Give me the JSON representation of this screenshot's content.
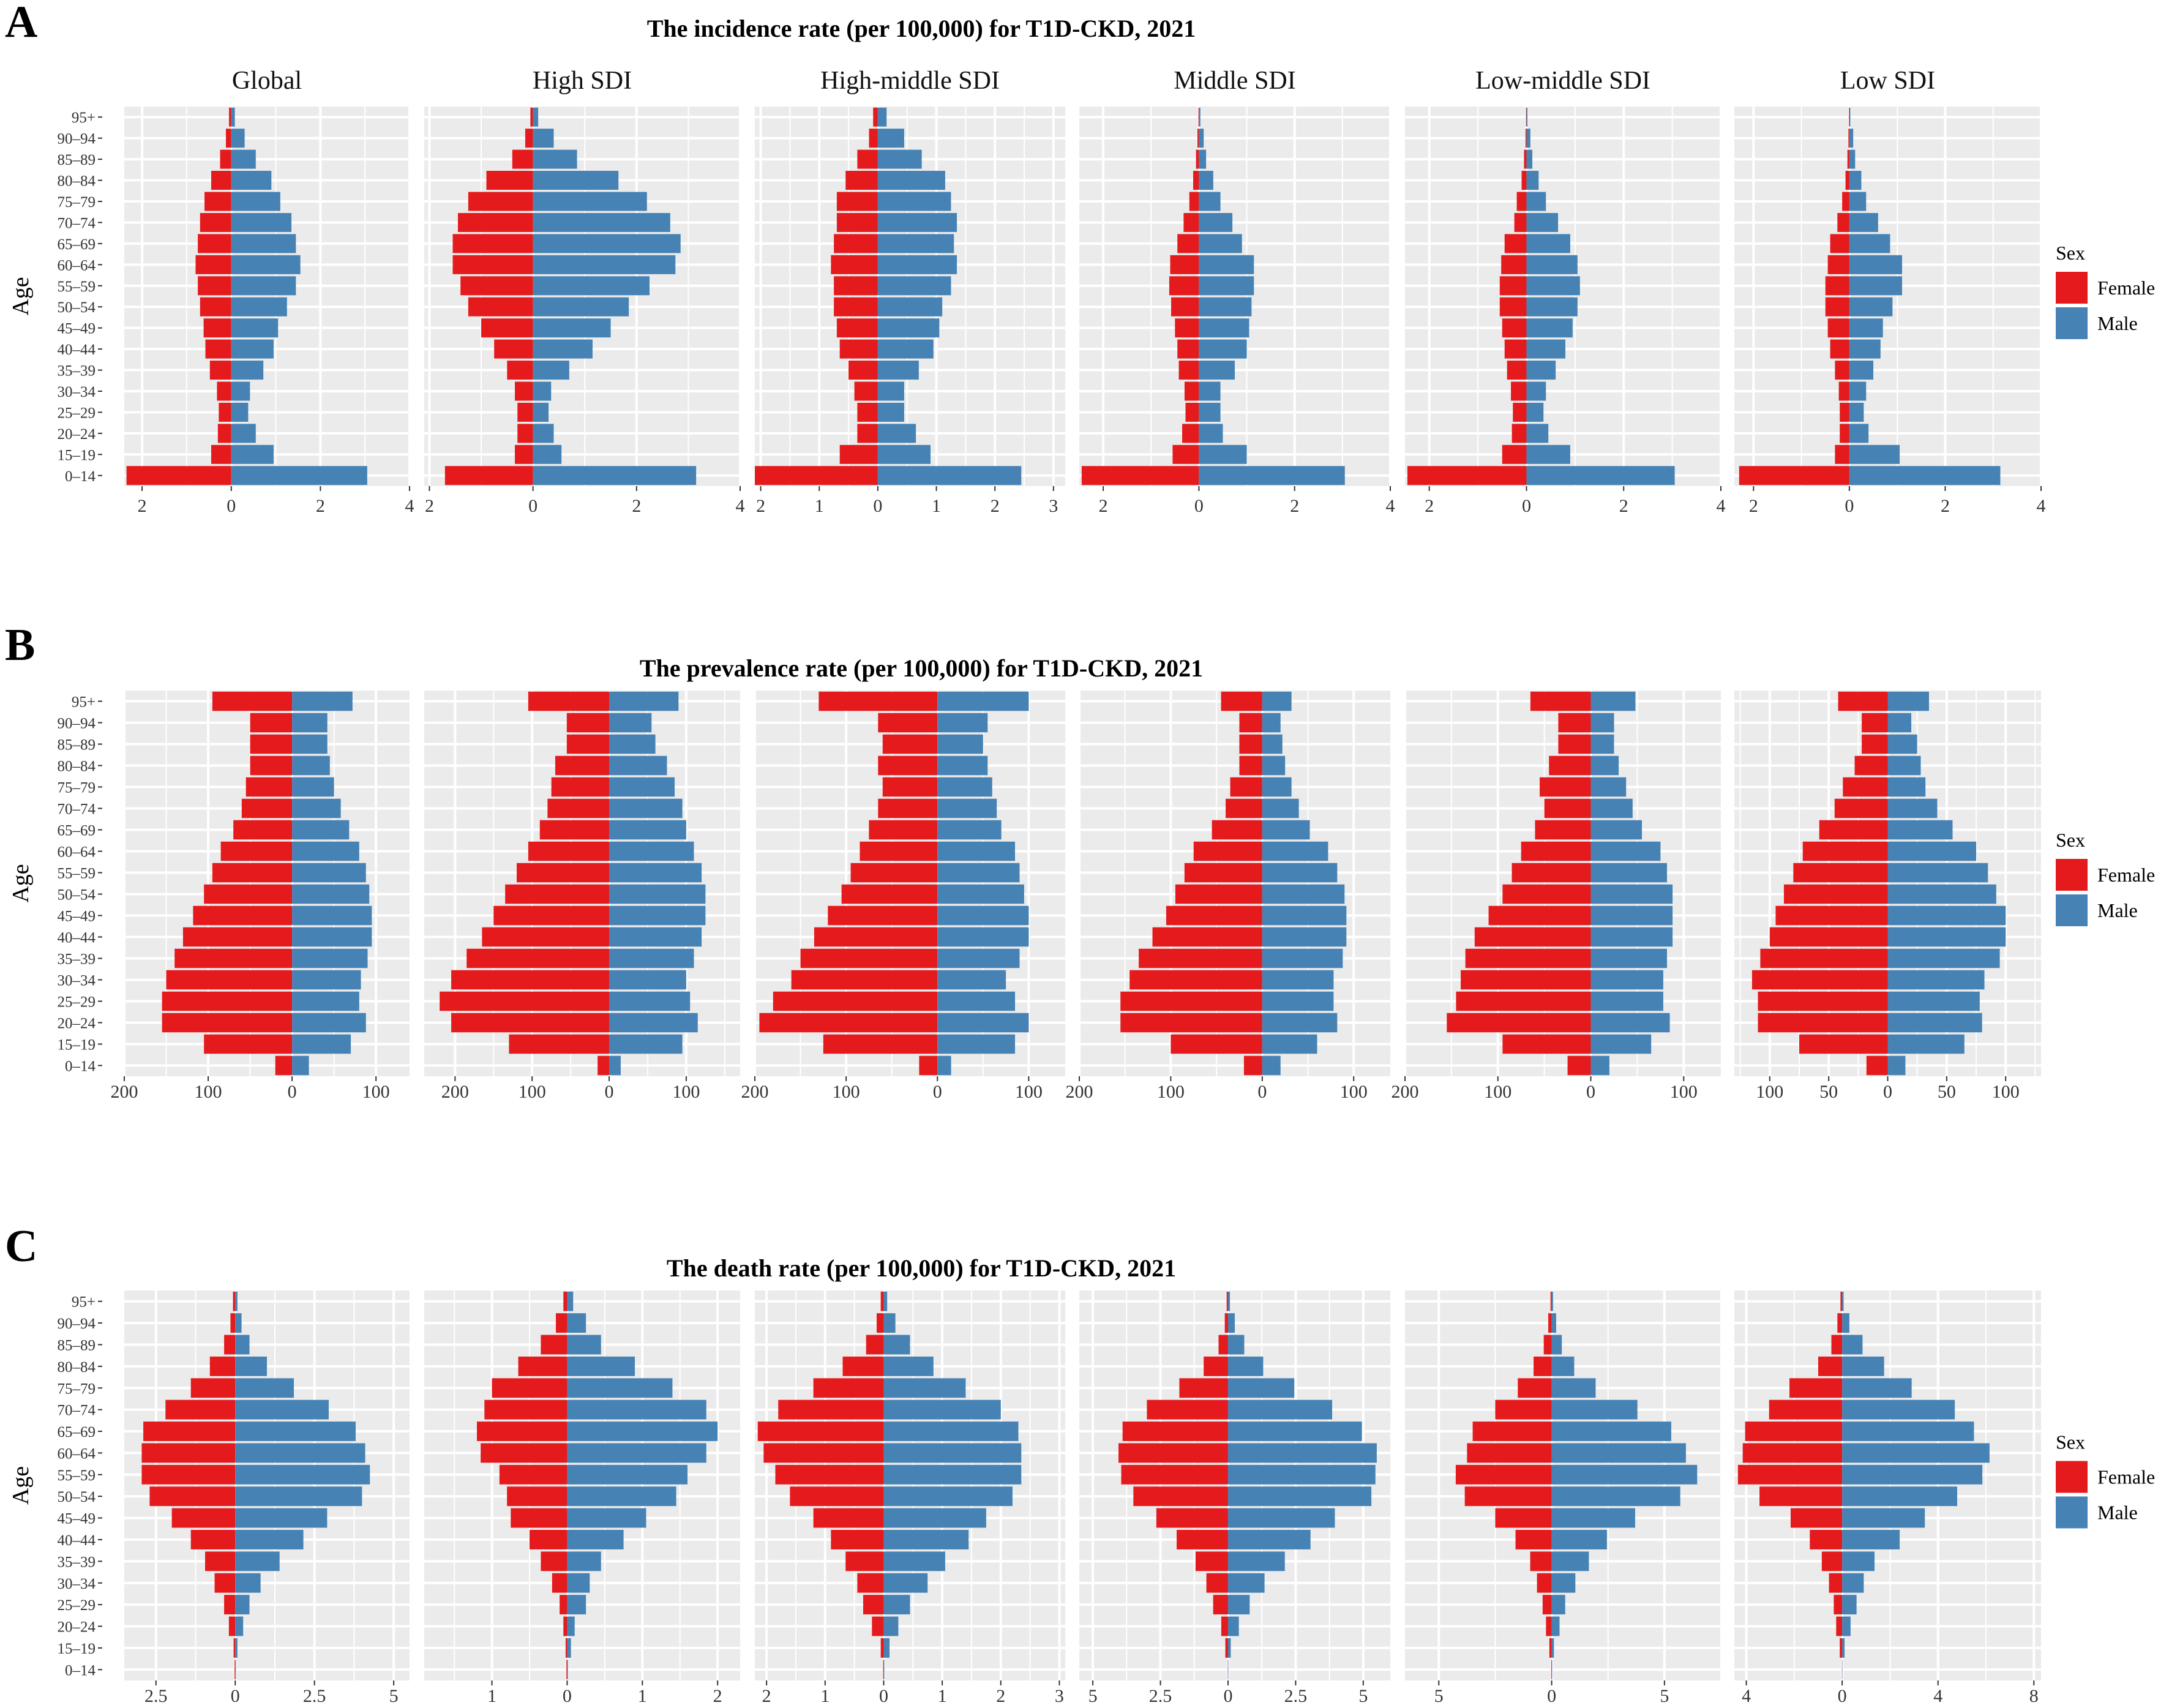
{
  "figure": {
    "age_axis_label": "Age",
    "age_groups": [
      "0–14",
      "15–19",
      "20–24",
      "25–29",
      "30–34",
      "35–39",
      "40–44",
      "45–49",
      "50–54",
      "55–59",
      "60–64",
      "65–69",
      "70–74",
      "75–79",
      "80–84",
      "85–89",
      "90–94",
      "95+"
    ],
    "legend": {
      "title": "Sex",
      "female": "Female",
      "male": "Male"
    },
    "colors": {
      "female": "#E41A1C",
      "male": "#4682B4",
      "panel_bg": "#EBEBEB",
      "grid": "#FFFFFF"
    },
    "column_titles": [
      "Global",
      "High SDI",
      "High-middle SDI",
      "Middle SDI",
      "Low-middle SDI",
      "Low SDI"
    ]
  },
  "chart_data": [
    {
      "type": "bar",
      "panel_letter": "A",
      "title": "The incidence rate (per 100,000) for T1D-CKD, 2021",
      "xlabel": "",
      "ylabel": "Age",
      "regions": [
        {
          "name": "Global",
          "xlim": [
            -2.4,
            4
          ],
          "ticks": [
            -2,
            0,
            2,
            4
          ],
          "tick_labels": [
            "2",
            "0",
            "2",
            "4"
          ],
          "female": [
            2.35,
            0.45,
            0.3,
            0.28,
            0.32,
            0.48,
            0.58,
            0.62,
            0.7,
            0.75,
            0.8,
            0.75,
            0.7,
            0.6,
            0.45,
            0.25,
            0.12,
            0.05
          ],
          "male": [
            3.05,
            0.95,
            0.55,
            0.38,
            0.42,
            0.72,
            0.95,
            1.05,
            1.25,
            1.45,
            1.55,
            1.45,
            1.35,
            1.1,
            0.9,
            0.55,
            0.3,
            0.08
          ]
        },
        {
          "name": "High SDI",
          "xlim": [
            -2.1,
            4
          ],
          "ticks": [
            -2,
            0,
            2,
            4
          ],
          "tick_labels": [
            "2",
            "0",
            "2",
            "4"
          ],
          "female": [
            1.7,
            0.35,
            0.3,
            0.3,
            0.35,
            0.5,
            0.75,
            1.0,
            1.25,
            1.4,
            1.55,
            1.55,
            1.45,
            1.25,
            0.9,
            0.4,
            0.15,
            0.05
          ],
          "male": [
            3.15,
            0.55,
            0.4,
            0.3,
            0.35,
            0.7,
            1.15,
            1.5,
            1.85,
            2.25,
            2.75,
            2.85,
            2.65,
            2.2,
            1.65,
            0.85,
            0.4,
            0.1
          ]
        },
        {
          "name": "High-middle SDI",
          "xlim": [
            -2.1,
            3.2
          ],
          "ticks": [
            -2,
            -1,
            0,
            1,
            2,
            3
          ],
          "tick_labels": [
            "2",
            "1",
            "0",
            "1",
            "2",
            "3"
          ],
          "female": [
            2.1,
            0.65,
            0.35,
            0.35,
            0.4,
            0.5,
            0.65,
            0.7,
            0.75,
            0.75,
            0.8,
            0.75,
            0.7,
            0.7,
            0.55,
            0.35,
            0.15,
            0.08
          ],
          "male": [
            2.45,
            0.9,
            0.65,
            0.45,
            0.45,
            0.7,
            0.95,
            1.05,
            1.1,
            1.25,
            1.35,
            1.3,
            1.35,
            1.25,
            1.15,
            0.75,
            0.45,
            0.15
          ]
        },
        {
          "name": "Middle SDI",
          "xlim": [
            -2.5,
            4
          ],
          "ticks": [
            -2,
            0,
            2,
            4
          ],
          "tick_labels": [
            "2",
            "0",
            "2",
            "4"
          ],
          "female": [
            2.45,
            0.55,
            0.35,
            0.28,
            0.3,
            0.42,
            0.45,
            0.5,
            0.58,
            0.62,
            0.6,
            0.45,
            0.32,
            0.2,
            0.12,
            0.06,
            0.03,
            0.01
          ],
          "male": [
            3.05,
            1.0,
            0.5,
            0.45,
            0.45,
            0.75,
            1.0,
            1.05,
            1.1,
            1.15,
            1.15,
            0.9,
            0.7,
            0.45,
            0.3,
            0.15,
            0.1,
            0.03
          ]
        },
        {
          "name": "Low-middle SDI",
          "xlim": [
            -2.5,
            4
          ],
          "ticks": [
            -2,
            0,
            2,
            4
          ],
          "tick_labels": [
            "2",
            "0",
            "2",
            "4"
          ],
          "female": [
            2.45,
            0.5,
            0.3,
            0.28,
            0.32,
            0.4,
            0.45,
            0.5,
            0.55,
            0.55,
            0.52,
            0.45,
            0.25,
            0.2,
            0.1,
            0.05,
            0.02,
            0.01
          ],
          "male": [
            3.05,
            0.9,
            0.45,
            0.35,
            0.4,
            0.6,
            0.8,
            0.95,
            1.05,
            1.1,
            1.05,
            0.9,
            0.65,
            0.4,
            0.25,
            0.12,
            0.08,
            0.02
          ]
        },
        {
          "name": "Low SDI",
          "xlim": [
            -2.4,
            4
          ],
          "ticks": [
            -2,
            0,
            2,
            4
          ],
          "tick_labels": [
            "2",
            "0",
            "2",
            "4"
          ],
          "female": [
            2.3,
            0.3,
            0.2,
            0.2,
            0.22,
            0.3,
            0.4,
            0.45,
            0.5,
            0.5,
            0.45,
            0.4,
            0.25,
            0.15,
            0.08,
            0.04,
            0.02,
            0.01
          ],
          "male": [
            3.15,
            1.05,
            0.4,
            0.3,
            0.35,
            0.5,
            0.65,
            0.7,
            0.9,
            1.1,
            1.1,
            0.85,
            0.6,
            0.35,
            0.25,
            0.12,
            0.08,
            0.02
          ]
        }
      ]
    },
    {
      "type": "bar",
      "panel_letter": "B",
      "title": "The prevalence rate (per 100,000) for T1D-CKD, 2021",
      "xlabel": "",
      "ylabel": "Age",
      "regions": [
        {
          "name": "Global",
          "xlim": [
            -200,
            140
          ],
          "ticks": [
            -200,
            -100,
            0,
            100
          ],
          "tick_labels": [
            "200",
            "100",
            "0",
            "100"
          ],
          "female": [
            20,
            105,
            155,
            155,
            150,
            140,
            130,
            118,
            105,
            95,
            85,
            70,
            60,
            55,
            50,
            50,
            50,
            95
          ],
          "male": [
            20,
            70,
            88,
            80,
            82,
            90,
            95,
            95,
            92,
            88,
            80,
            68,
            58,
            50,
            45,
            42,
            42,
            72
          ]
        },
        {
          "name": "High SDI",
          "xlim": [
            -240,
            170
          ],
          "ticks": [
            -200,
            -100,
            0,
            100
          ],
          "tick_labels": [
            "200",
            "100",
            "0",
            "100"
          ],
          "female": [
            15,
            130,
            205,
            220,
            205,
            185,
            165,
            150,
            135,
            120,
            105,
            90,
            80,
            75,
            70,
            55,
            55,
            105
          ],
          "male": [
            15,
            95,
            115,
            105,
            100,
            110,
            120,
            125,
            125,
            120,
            110,
            100,
            95,
            85,
            75,
            60,
            55,
            90
          ]
        },
        {
          "name": "High-middle SDI",
          "xlim": [
            -200,
            140
          ],
          "ticks": [
            -200,
            -100,
            0,
            100
          ],
          "tick_labels": [
            "200",
            "100",
            "0",
            "100"
          ],
          "female": [
            20,
            125,
            195,
            180,
            160,
            150,
            135,
            120,
            105,
            95,
            85,
            75,
            65,
            60,
            65,
            60,
            65,
            130
          ],
          "male": [
            15,
            85,
            100,
            85,
            75,
            90,
            100,
            100,
            95,
            90,
            85,
            70,
            65,
            60,
            55,
            50,
            55,
            100
          ]
        },
        {
          "name": "Middle SDI",
          "xlim": [
            -200,
            140
          ],
          "ticks": [
            -200,
            -100,
            0,
            100
          ],
          "tick_labels": [
            "200",
            "100",
            "0",
            "100"
          ],
          "female": [
            20,
            100,
            155,
            155,
            145,
            135,
            120,
            105,
            95,
            85,
            75,
            55,
            40,
            35,
            25,
            25,
            25,
            45
          ],
          "male": [
            20,
            60,
            82,
            78,
            78,
            88,
            92,
            92,
            90,
            82,
            72,
            52,
            40,
            32,
            25,
            22,
            20,
            32
          ]
        },
        {
          "name": "Low-middle SDI",
          "xlim": [
            -200,
            140
          ],
          "ticks": [
            -200,
            -100,
            0,
            100
          ],
          "tick_labels": [
            "200",
            "100",
            "0",
            "100"
          ],
          "female": [
            25,
            95,
            155,
            145,
            140,
            135,
            125,
            110,
            95,
            85,
            75,
            60,
            50,
            55,
            45,
            35,
            35,
            65
          ],
          "male": [
            20,
            65,
            85,
            78,
            78,
            82,
            88,
            88,
            88,
            82,
            75,
            55,
            45,
            38,
            30,
            25,
            25,
            48
          ]
        },
        {
          "name": "Low SDI",
          "xlim": [
            -130,
            130
          ],
          "ticks": [
            -100,
            -50,
            0,
            50,
            100
          ],
          "tick_labels": [
            "100",
            "50",
            "0",
            "50",
            "100"
          ],
          "female": [
            18,
            75,
            110,
            110,
            115,
            108,
            100,
            95,
            88,
            80,
            72,
            58,
            45,
            38,
            28,
            22,
            22,
            42
          ],
          "male": [
            15,
            65,
            80,
            78,
            82,
            95,
            100,
            100,
            92,
            85,
            75,
            55,
            42,
            32,
            28,
            25,
            20,
            35
          ]
        }
      ]
    },
    {
      "type": "bar",
      "panel_letter": "C",
      "title": "The death rate (per 100,000) for T1D-CKD, 2021",
      "xlabel": "",
      "ylabel": "Age",
      "regions": [
        {
          "name": "Global",
          "xlim": [
            -3.5,
            5.5
          ],
          "ticks": [
            -2.5,
            0,
            2.5,
            5
          ],
          "tick_labels": [
            "2.5",
            "0",
            "2.5",
            "5"
          ],
          "female": [
            0.02,
            0.05,
            0.2,
            0.35,
            0.65,
            0.95,
            1.4,
            2.0,
            2.7,
            2.95,
            2.95,
            2.9,
            2.2,
            1.4,
            0.8,
            0.35,
            0.15,
            0.07
          ],
          "male": [
            0.02,
            0.07,
            0.25,
            0.45,
            0.8,
            1.4,
            2.15,
            2.9,
            4.0,
            4.25,
            4.1,
            3.8,
            2.95,
            1.85,
            1.0,
            0.45,
            0.2,
            0.07
          ]
        },
        {
          "name": "High SDI",
          "xlim": [
            -1.9,
            2.3
          ],
          "ticks": [
            -1,
            0,
            1,
            2
          ],
          "tick_labels": [
            "1",
            "0",
            "1",
            "2"
          ],
          "female": [
            0.01,
            0.02,
            0.05,
            0.1,
            0.2,
            0.35,
            0.5,
            0.75,
            0.8,
            0.9,
            1.15,
            1.2,
            1.1,
            1.0,
            0.65,
            0.35,
            0.15,
            0.05
          ],
          "male": [
            0.01,
            0.05,
            0.1,
            0.25,
            0.3,
            0.45,
            0.75,
            1.05,
            1.45,
            1.6,
            1.85,
            2.0,
            1.85,
            1.4,
            0.9,
            0.45,
            0.25,
            0.08
          ]
        },
        {
          "name": "High-middle SDI",
          "xlim": [
            -2.2,
            3.1
          ],
          "ticks": [
            -2,
            -1,
            0,
            1,
            2,
            3
          ],
          "tick_labels": [
            "2",
            "1",
            "0",
            "1",
            "2",
            "3"
          ],
          "female": [
            0.01,
            0.05,
            0.2,
            0.35,
            0.45,
            0.65,
            0.9,
            1.2,
            1.6,
            1.85,
            2.05,
            2.15,
            1.8,
            1.2,
            0.7,
            0.3,
            0.12,
            0.05
          ],
          "male": [
            0.01,
            0.1,
            0.25,
            0.45,
            0.75,
            1.05,
            1.45,
            1.75,
            2.2,
            2.35,
            2.35,
            2.3,
            2.0,
            1.4,
            0.85,
            0.45,
            0.2,
            0.06
          ]
        },
        {
          "name": "Middle SDI",
          "xlim": [
            -5.5,
            6
          ],
          "ticks": [
            -5,
            -2.5,
            0,
            2.5,
            5
          ],
          "tick_labels": [
            "5",
            "2.5",
            "0",
            "2.5",
            "5"
          ],
          "female": [
            0.01,
            0.1,
            0.25,
            0.55,
            0.8,
            1.2,
            1.9,
            2.65,
            3.5,
            3.95,
            4.05,
            3.9,
            3.0,
            1.8,
            0.9,
            0.35,
            0.12,
            0.05
          ],
          "male": [
            0.01,
            0.1,
            0.4,
            0.8,
            1.35,
            2.1,
            3.05,
            3.95,
            5.3,
            5.45,
            5.5,
            4.95,
            3.85,
            2.45,
            1.3,
            0.6,
            0.25,
            0.07
          ]
        },
        {
          "name": "Low-middle SDI",
          "xlim": [
            -6.5,
            7.5
          ],
          "ticks": [
            -5,
            0,
            5
          ],
          "tick_labels": [
            "5",
            "0",
            "5"
          ],
          "female": [
            0.02,
            0.1,
            0.25,
            0.4,
            0.65,
            0.95,
            1.6,
            2.5,
            3.85,
            4.25,
            3.75,
            3.5,
            2.5,
            1.5,
            0.8,
            0.35,
            0.15,
            0.05
          ],
          "male": [
            0.02,
            0.1,
            0.35,
            0.6,
            1.05,
            1.65,
            2.45,
            3.7,
            5.7,
            6.45,
            5.95,
            5.3,
            3.8,
            1.95,
            1.0,
            0.45,
            0.2,
            0.06
          ]
        },
        {
          "name": "Low SDI",
          "xlim": [
            -4.5,
            8.3
          ],
          "ticks": [
            -4,
            0,
            4,
            8
          ],
          "tick_labels": [
            "4",
            "0",
            "4",
            "8"
          ],
          "female": [
            0.01,
            0.1,
            0.25,
            0.35,
            0.55,
            0.85,
            1.35,
            2.15,
            3.45,
            4.35,
            4.15,
            4.05,
            3.05,
            2.2,
            1.0,
            0.45,
            0.2,
            0.07
          ],
          "male": [
            0.01,
            0.1,
            0.35,
            0.6,
            0.9,
            1.35,
            2.4,
            3.45,
            4.8,
            5.85,
            6.15,
            5.5,
            4.7,
            2.9,
            1.75,
            0.85,
            0.3,
            0.06
          ]
        }
      ]
    }
  ]
}
